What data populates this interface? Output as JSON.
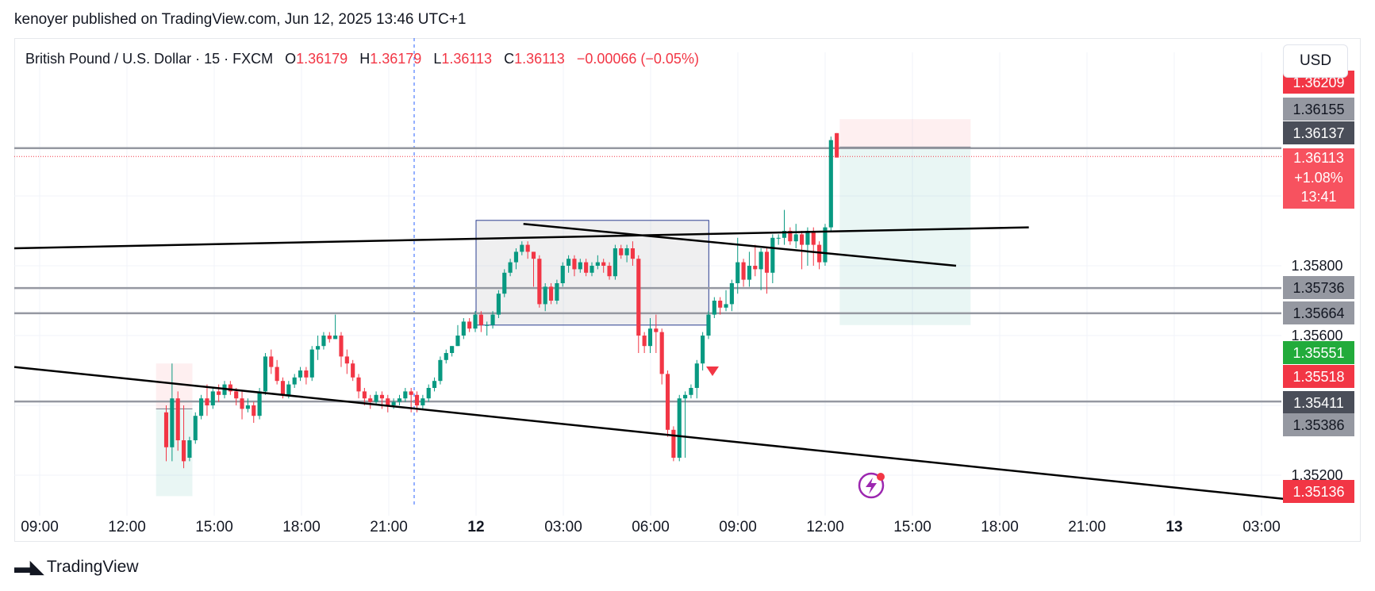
{
  "header": {
    "published_text": "kenoyer published on TradingView.com, Jun 12, 2025 13:46 UTC+1"
  },
  "legend": {
    "symbol": "British Pound / U.S. Dollar · 15 · FXCM",
    "o_label": "O",
    "o_value": "1.36179",
    "h_label": "H",
    "h_value": "1.36179",
    "l_label": "L",
    "l_value": "1.36113",
    "c_label": "C",
    "c_value": "1.36113",
    "change": "−0.00066 (−0.05%)"
  },
  "currency_button": "USD",
  "footer": {
    "brand": "TradingView"
  },
  "colors": {
    "up": "#089981",
    "down": "#f23645",
    "level": "#9598a1",
    "trend": "#000000",
    "box": "#2a3d8f"
  },
  "chart_data": {
    "type": "candlestick",
    "x_ticks": [
      "09:00",
      "12:00",
      "15:00",
      "18:00",
      "21:00",
      "12",
      "03:00",
      "06:00",
      "09:00",
      "12:00",
      "15:00",
      "18:00",
      "21:00",
      "13",
      "03:00"
    ],
    "y_ticks": [
      "1.35800",
      "1.35600",
      "1.35200"
    ],
    "price_labels": [
      {
        "text": "1.36209",
        "kind": "red"
      },
      {
        "text": "1.36155",
        "kind": "gray"
      },
      {
        "text": "1.36137",
        "kind": "dark"
      },
      {
        "text": "1.36113",
        "kind": "current",
        "extra": [
          "+1.08%",
          "13:41"
        ]
      },
      {
        "text": "1.35736",
        "kind": "gray"
      },
      {
        "text": "1.35664",
        "kind": "gray"
      },
      {
        "text": "1.35551",
        "kind": "green"
      },
      {
        "text": "1.35518",
        "kind": "red"
      },
      {
        "text": "1.35411",
        "kind": "dark"
      },
      {
        "text": "1.35386",
        "kind": "gray"
      },
      {
        "text": "1.35136",
        "kind": "red"
      }
    ],
    "levels": [
      1.36137,
      1.35736,
      1.35664,
      1.35411
    ],
    "current_price": 1.36113,
    "candles": [
      [
        1.3538,
        1.3528,
        1.354,
        1.3524
      ],
      [
        1.3528,
        1.3542,
        1.3552,
        1.3524
      ],
      [
        1.3542,
        1.353,
        1.3544,
        1.3527
      ],
      [
        1.353,
        1.3524,
        1.354,
        1.3522
      ],
      [
        1.3525,
        1.353,
        1.3531,
        1.3524
      ],
      [
        1.353,
        1.3537,
        1.3538,
        1.3529
      ],
      [
        1.3537,
        1.3542,
        1.3543,
        1.3536
      ],
      [
        1.3542,
        1.354,
        1.3546,
        1.3537
      ],
      [
        1.354,
        1.3544,
        1.3545,
        1.3539
      ],
      [
        1.3544,
        1.3543,
        1.3546,
        1.3541
      ],
      [
        1.3543,
        1.3546,
        1.3547,
        1.3542
      ],
      [
        1.3546,
        1.3544,
        1.3547,
        1.3543
      ],
      [
        1.3544,
        1.3542,
        1.3545,
        1.354
      ],
      [
        1.3542,
        1.3539,
        1.3544,
        1.3536
      ],
      [
        1.3539,
        1.354,
        1.3542,
        1.3538
      ],
      [
        1.354,
        1.3537,
        1.3541,
        1.3535
      ],
      [
        1.3537,
        1.3544,
        1.3545,
        1.3536
      ],
      [
        1.3544,
        1.3554,
        1.3555,
        1.3543
      ],
      [
        1.3554,
        1.3551,
        1.3556,
        1.3549
      ],
      [
        1.3551,
        1.3547,
        1.3553,
        1.3546
      ],
      [
        1.3547,
        1.3543,
        1.3548,
        1.3542
      ],
      [
        1.3543,
        1.3546,
        1.3547,
        1.3542
      ],
      [
        1.3546,
        1.3548,
        1.3549,
        1.3545
      ],
      [
        1.3548,
        1.355,
        1.3551,
        1.3547
      ],
      [
        1.355,
        1.3548,
        1.3551,
        1.3546
      ],
      [
        1.3548,
        1.3556,
        1.3557,
        1.3547
      ],
      [
        1.3556,
        1.3557,
        1.356,
        1.3553
      ],
      [
        1.3557,
        1.356,
        1.3561,
        1.3556
      ],
      [
        1.356,
        1.3559,
        1.3561,
        1.3558
      ],
      [
        1.3559,
        1.356,
        1.3566,
        1.3559
      ],
      [
        1.356,
        1.3554,
        1.3561,
        1.3551
      ],
      [
        1.3554,
        1.3552,
        1.3556,
        1.3549
      ],
      [
        1.3552,
        1.3548,
        1.3553,
        1.3547
      ],
      [
        1.3548,
        1.3544,
        1.3549,
        1.3542
      ],
      [
        1.3544,
        1.3542,
        1.3545,
        1.354
      ],
      [
        1.3542,
        1.3541,
        1.3543,
        1.3539
      ],
      [
        1.3541,
        1.3543,
        1.3544,
        1.354
      ],
      [
        1.3543,
        1.3542,
        1.3544,
        1.3539
      ],
      [
        1.3542,
        1.354,
        1.3543,
        1.3538
      ],
      [
        1.354,
        1.3541,
        1.3542,
        1.3539
      ],
      [
        1.3541,
        1.3542,
        1.3543,
        1.354
      ],
      [
        1.3542,
        1.3544,
        1.3545,
        1.3541
      ],
      [
        1.3544,
        1.3543,
        1.3545,
        1.3538
      ],
      [
        1.3543,
        1.354,
        1.3544,
        1.3538
      ],
      [
        1.354,
        1.3542,
        1.3543,
        1.3539
      ],
      [
        1.3542,
        1.3545,
        1.3546,
        1.3541
      ],
      [
        1.3545,
        1.3547,
        1.3548,
        1.3544
      ],
      [
        1.3547,
        1.3553,
        1.3554,
        1.3546
      ],
      [
        1.3553,
        1.3555,
        1.3556,
        1.3552
      ],
      [
        1.3555,
        1.3557,
        1.3557,
        1.3554
      ],
      [
        1.3557,
        1.356,
        1.3563,
        1.3557
      ],
      [
        1.356,
        1.3564,
        1.3565,
        1.3559
      ],
      [
        1.3564,
        1.3562,
        1.3565,
        1.3561
      ],
      [
        1.3562,
        1.3566,
        1.3567,
        1.3561
      ],
      [
        1.3566,
        1.3563,
        1.3567,
        1.3561
      ],
      [
        1.3563,
        1.3563,
        1.3564,
        1.356
      ],
      [
        1.3563,
        1.3566,
        1.3567,
        1.3562
      ],
      [
        1.3566,
        1.3572,
        1.3573,
        1.3565
      ],
      [
        1.3572,
        1.3578,
        1.3579,
        1.3571
      ],
      [
        1.3578,
        1.3581,
        1.3582,
        1.3577
      ],
      [
        1.3581,
        1.3584,
        1.3585,
        1.3579
      ],
      [
        1.3584,
        1.3586,
        1.3587,
        1.3583
      ],
      [
        1.3586,
        1.3584,
        1.3587,
        1.3582
      ],
      [
        1.3584,
        1.3582,
        1.3584,
        1.3574
      ],
      [
        1.3582,
        1.3569,
        1.3583,
        1.3568
      ],
      [
        1.3569,
        1.3574,
        1.3575,
        1.3567
      ],
      [
        1.3574,
        1.357,
        1.3575,
        1.3569
      ],
      [
        1.357,
        1.3575,
        1.3576,
        1.3569
      ],
      [
        1.3575,
        1.358,
        1.3581,
        1.3574
      ],
      [
        1.358,
        1.3582,
        1.3583,
        1.3578
      ],
      [
        1.3582,
        1.3579,
        1.3583,
        1.3577
      ],
      [
        1.3579,
        1.3581,
        1.3582,
        1.3578
      ],
      [
        1.3581,
        1.3578,
        1.3582,
        1.3577
      ],
      [
        1.3578,
        1.358,
        1.3581,
        1.3577
      ],
      [
        1.358,
        1.3581,
        1.3583,
        1.3579
      ],
      [
        1.3581,
        1.358,
        1.3582,
        1.3578
      ],
      [
        1.358,
        1.3577,
        1.3581,
        1.3576
      ],
      [
        1.3577,
        1.3585,
        1.3586,
        1.3576
      ],
      [
        1.3585,
        1.3583,
        1.3586,
        1.3582
      ],
      [
        1.3583,
        1.3585,
        1.3586,
        1.3581
      ],
      [
        1.3585,
        1.3582,
        1.3587,
        1.358
      ],
      [
        1.3582,
        1.356,
        1.3583,
        1.3555
      ],
      [
        1.356,
        1.3557,
        1.3561,
        1.3555
      ],
      [
        1.3557,
        1.3562,
        1.3565,
        1.3555
      ],
      [
        1.3562,
        1.3561,
        1.3566,
        1.3555
      ],
      [
        1.3561,
        1.3549,
        1.3562,
        1.3546
      ],
      [
        1.3549,
        1.3533,
        1.355,
        1.3531
      ],
      [
        1.3533,
        1.3525,
        1.3534,
        1.3524
      ],
      [
        1.3525,
        1.3542,
        1.3543,
        1.3524
      ],
      [
        1.3542,
        1.3543,
        1.3544,
        1.3525
      ],
      [
        1.3543,
        1.3545,
        1.3546,
        1.3542
      ],
      [
        1.3545,
        1.3552,
        1.3553,
        1.3542
      ],
      [
        1.3552,
        1.356,
        1.3561,
        1.355
      ],
      [
        1.356,
        1.3566,
        1.3567,
        1.3559
      ],
      [
        1.3566,
        1.357,
        1.3571,
        1.3565
      ],
      [
        1.357,
        1.3568,
        1.3571,
        1.3566
      ],
      [
        1.3568,
        1.3569,
        1.3573,
        1.3567
      ],
      [
        1.3569,
        1.3575,
        1.3576,
        1.3567
      ],
      [
        1.3575,
        1.3581,
        1.3588,
        1.3572
      ],
      [
        1.3581,
        1.3576,
        1.3582,
        1.3574
      ],
      [
        1.3576,
        1.358,
        1.3584,
        1.3574
      ],
      [
        1.358,
        1.3579,
        1.3586,
        1.3577
      ],
      [
        1.3579,
        1.3584,
        1.3585,
        1.3573
      ],
      [
        1.3584,
        1.3578,
        1.3585,
        1.3572
      ],
      [
        1.3578,
        1.3588,
        1.3589,
        1.3575
      ],
      [
        1.3588,
        1.3588,
        1.3589,
        1.3586
      ],
      [
        1.3588,
        1.359,
        1.3596,
        1.3586
      ],
      [
        1.359,
        1.3587,
        1.3591,
        1.3586
      ],
      [
        1.3587,
        1.3589,
        1.3592,
        1.3585
      ],
      [
        1.3589,
        1.3586,
        1.359,
        1.3579
      ],
      [
        1.3586,
        1.359,
        1.3591,
        1.358
      ],
      [
        1.359,
        1.3586,
        1.3591,
        1.358
      ],
      [
        1.3586,
        1.3581,
        1.3587,
        1.3579
      ],
      [
        1.3581,
        1.3591,
        1.3592,
        1.358
      ],
      [
        1.3591,
        1.3616,
        1.3617,
        1.359
      ],
      [
        1.3618,
        1.3611,
        1.3618,
        1.3611
      ]
    ],
    "trendlines": [
      {
        "x1": "09:00",
        "y1": 1.3585,
        "x2": "19:00",
        "y2": 1.3591
      },
      {
        "x1": "09:00",
        "y1": 1.3551,
        "x2": "04:00",
        "y2": 1.3513
      },
      {
        "x1": "02:30",
        "y1": 1.3592,
        "x2": "16:30",
        "y2": 1.358
      }
    ],
    "range_box": {
      "x1": "00:00",
      "x2": "08:00",
      "y_top": 1.3593,
      "y_bottom": 1.3563
    },
    "positions": [
      {
        "x1": "13:00",
        "x2": "14:15",
        "entry": 1.3539,
        "stop": 1.3552,
        "target": 1.3514
      },
      {
        "x1": "12:30",
        "x2": "17:00",
        "entry": 1.3614,
        "stop": 1.3622,
        "target": 1.3563
      }
    ]
  }
}
